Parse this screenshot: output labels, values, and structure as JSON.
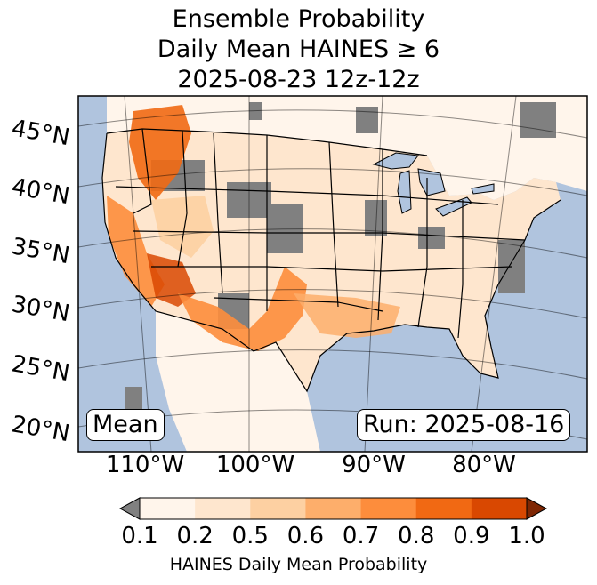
{
  "title": {
    "line1": "Ensemble Probability",
    "line2": "Daily Mean HAINES ≥ 6",
    "line3": "2025-08-23 12z-12z"
  },
  "map": {
    "lat_labels": [
      "45°N",
      "40°N",
      "35°N",
      "30°N",
      "25°N",
      "20°N"
    ],
    "lon_labels": [
      "110°W",
      "100°W",
      "90°W",
      "80°W"
    ],
    "colors": {
      "ocean": "#b0c4de",
      "land_missing": "#808080",
      "border": "#000000"
    }
  },
  "boxes": {
    "mean": "Mean",
    "run": "Run: 2025-08-16"
  },
  "colorbar": {
    "label": "HAINES Daily Mean Probability",
    "ticks": [
      "0.1",
      "0.2",
      "0.5",
      "0.6",
      "0.7",
      "0.8",
      "0.9",
      "1.0"
    ],
    "under_color": "#808080",
    "over_color": "#7f2704",
    "colors": [
      "#fff5eb",
      "#fee6ce",
      "#fdd0a2",
      "#fdae6b",
      "#fd8d3c",
      "#f16913",
      "#d94801"
    ]
  }
}
